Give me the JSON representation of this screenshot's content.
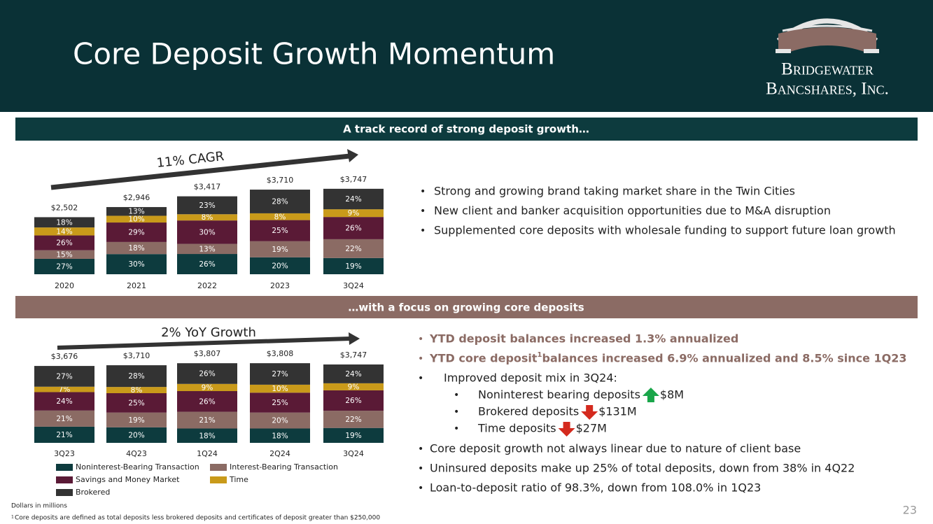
{
  "header": {
    "title": "Core Deposit Growth Momentum",
    "logo": [
      "Bridgewater",
      "Bancshares, Inc."
    ]
  },
  "banners": [
    "A track record of strong deposit growth…",
    "…with a focus on growing core deposits"
  ],
  "chart_data": [
    {
      "type": "bar",
      "stacked": true,
      "annotation": "11% CAGR",
      "categories": [
        "2020",
        "2021",
        "2022",
        "2023",
        "3Q24"
      ],
      "totals": {
        "values": [
          2502,
          2946,
          3417,
          3710,
          3747
        ],
        "value_labels": [
          "$2,502",
          "$2,946",
          "$3,417",
          "$3,710",
          "$3,747"
        ]
      },
      "series": [
        {
          "color": "#0d3b3e",
          "values": [
            27,
            30,
            26,
            20,
            19
          ],
          "value_labels": [
            "27%",
            "30%",
            "26%",
            "20%",
            "19%"
          ]
        },
        {
          "color": "#8b6b64",
          "values": [
            15,
            18,
            13,
            19,
            22
          ],
          "value_labels": [
            "15%",
            "18%",
            "13%",
            "19%",
            "22%"
          ]
        },
        {
          "color": "#5a1a36",
          "values": [
            26,
            29,
            30,
            25,
            26
          ],
          "value_labels": [
            "26%",
            "29%",
            "30%",
            "25%",
            "26%"
          ]
        },
        {
          "color": "#c99a1a",
          "values": [
            14,
            10,
            8,
            8,
            9
          ],
          "value_labels": [
            "14%",
            "10%",
            "8%",
            "8%",
            "9%"
          ]
        },
        {
          "color": "#333333",
          "values": [
            18,
            13,
            23,
            28,
            24
          ],
          "value_labels": [
            "18%",
            "13%",
            "23%",
            "28%",
            "24%"
          ]
        }
      ]
    },
    {
      "type": "bar",
      "stacked": true,
      "annotation": "2% YoY Growth",
      "categories": [
        "3Q23",
        "4Q23",
        "1Q24",
        "2Q24",
        "3Q24"
      ],
      "totals": {
        "values": [
          3676,
          3710,
          3807,
          3808,
          3747
        ],
        "value_labels": [
          "$3,676",
          "$3,710",
          "$3,807",
          "$3,808",
          "$3,747"
        ]
      },
      "series": [
        {
          "name": "Noninterest-Bearing Transaction",
          "color": "#0d3b3e",
          "values": [
            21,
            20,
            18,
            18,
            19
          ],
          "value_labels": [
            "21%",
            "20%",
            "18%",
            "18%",
            "19%"
          ]
        },
        {
          "name": "Interest-Bearing Transaction",
          "color": "#8b6b64",
          "values": [
            21,
            19,
            21,
            20,
            22
          ],
          "value_labels": [
            "21%",
            "19%",
            "21%",
            "20%",
            "22%"
          ]
        },
        {
          "name": "Savings and Money Market",
          "color": "#5a1a36",
          "values": [
            24,
            25,
            26,
            25,
            26
          ],
          "value_labels": [
            "24%",
            "25%",
            "26%",
            "25%",
            "26%"
          ]
        },
        {
          "name": "Time",
          "color": "#c99a1a",
          "values": [
            7,
            8,
            9,
            10,
            9
          ],
          "value_labels": [
            "7%",
            "8%",
            "9%",
            "10%",
            "9%"
          ]
        },
        {
          "name": "Brokered",
          "color": "#333333",
          "values": [
            27,
            28,
            26,
            27,
            24
          ],
          "value_labels": [
            "27%",
            "28%",
            "26%",
            "27%",
            "24%"
          ]
        }
      ]
    }
  ],
  "bullets_top": [
    "Strong and growing brand taking market share in the Twin Cities",
    "New client and banker acquisition opportunities due to M&A disruption",
    "Supplemented core deposits with wholesale funding to support future loan growth"
  ],
  "bullets_bottom": [
    {
      "text": "YTD deposit balances increased 1.3% annualized",
      "highlight": true,
      "level": 1
    },
    {
      "text": "YTD core deposit",
      "sup": "1",
      "after": " balances increased 6.9% annualized and 8.5% since 1Q23",
      "highlight": true,
      "level": 1
    },
    {
      "text": "Improved deposit mix in 3Q24:",
      "level": 1,
      "indent": true
    },
    {
      "text": "Noninterest bearing deposits",
      "arrow": "up",
      "after": "$8M",
      "level": 2
    },
    {
      "text": "Brokered deposits",
      "arrow": "down",
      "after": "$131M",
      "level": 2
    },
    {
      "text": "Time deposits",
      "arrow": "down",
      "after": "$27M",
      "level": 2
    },
    {
      "text": "Core deposit growth not always linear due to nature of client base",
      "level": 1
    },
    {
      "text": "Uninsured deposits make up 25% of total deposits, down from 38% in 4Q22",
      "level": 1
    },
    {
      "text": "Loan-to-deposit ratio of 98.3%, down from 108.0% in 1Q23",
      "level": 1
    }
  ],
  "footnotes": {
    "note": "Dollars in millions",
    "mark": "1",
    "text": "Core deposits are defined as total deposits less brokered deposits and certificates of deposit greater than $250,000"
  },
  "page_number": "23"
}
